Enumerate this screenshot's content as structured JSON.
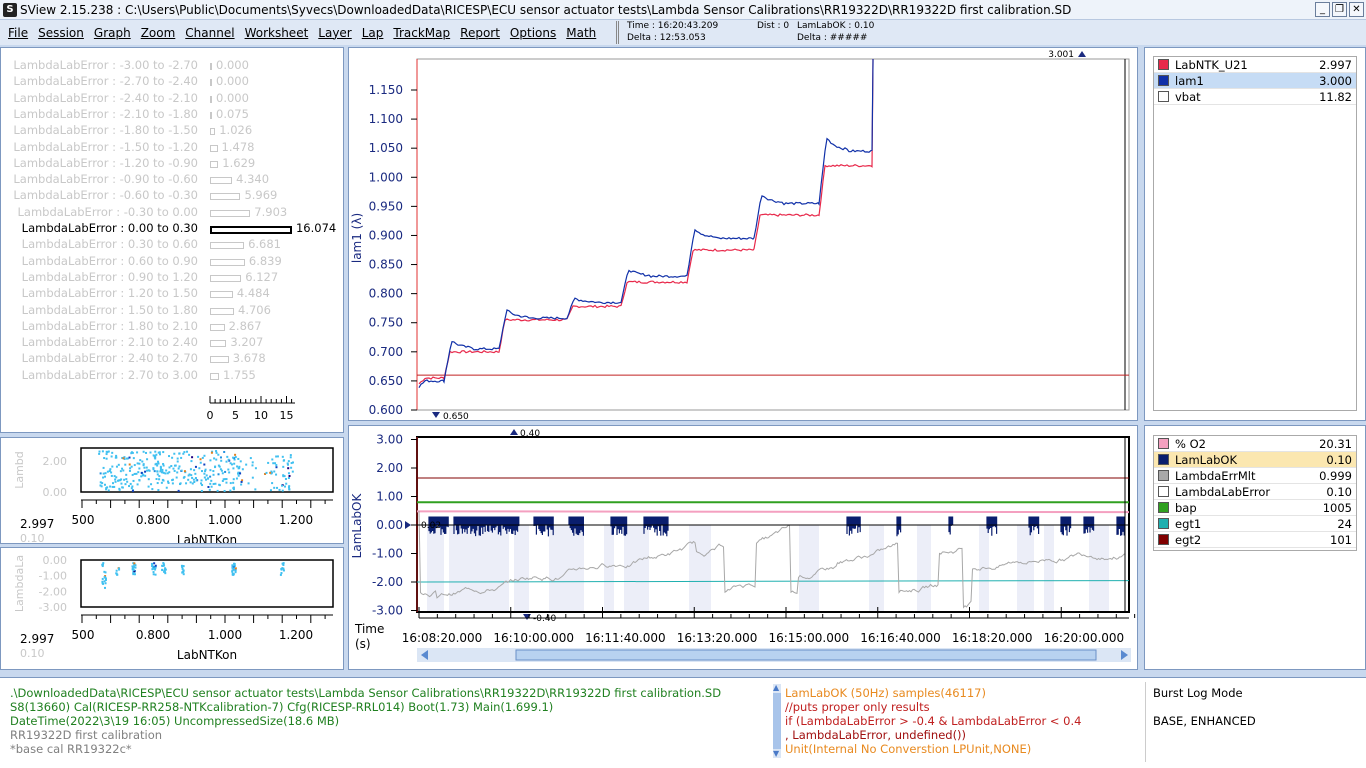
{
  "app": {
    "title": "SView 2.15.238  :  C:\\Users\\Public\\Documents\\Syvecs\\DownloadedData\\RICESP\\ECU sensor actuator tests\\Lambda Sensor Calibrations\\RR19322D\\RR19322D first calibration.SD",
    "logo": "S"
  },
  "menu": [
    "File",
    "Session",
    "Graph",
    "Zoom",
    "Channel",
    "Worksheet",
    "Layer",
    "Lap",
    "TrackMap",
    "Report",
    "Options",
    "Math"
  ],
  "status": {
    "time": "Time : 16:20:43.209",
    "dist": "Dist : 0",
    "lamlabok": "LamLabOK : 0.10",
    "delta": "Delta : 12:53.053",
    "delta2": "Delta : #####"
  },
  "histogram": {
    "rows": [
      {
        "label": "LambdaLabError : -3.00 to -2.70",
        "value": "0.000"
      },
      {
        "label": "LambdaLabError : -2.70 to -2.40",
        "value": "0.000"
      },
      {
        "label": "LambdaLabError : -2.40 to -2.10",
        "value": "0.000"
      },
      {
        "label": "LambdaLabError : -2.10 to -1.80",
        "value": "0.075"
      },
      {
        "label": "LambdaLabError : -1.80 to -1.50",
        "value": "1.026"
      },
      {
        "label": "LambdaLabError : -1.50 to -1.20",
        "value": "1.478"
      },
      {
        "label": "LambdaLabError : -1.20 to -0.90",
        "value": "1.629"
      },
      {
        "label": "LambdaLabError : -0.90 to -0.60",
        "value": "4.340"
      },
      {
        "label": "LambdaLabError : -0.60 to -0.30",
        "value": "5.969"
      },
      {
        "label": "LambdaLabError : -0.30 to 0.00",
        "value": "7.903"
      },
      {
        "label": "LambdaLabError : 0.00 to 0.30",
        "value": "16.074",
        "selected": true
      },
      {
        "label": "LambdaLabError : 0.30 to 0.60",
        "value": "6.681"
      },
      {
        "label": "LambdaLabError : 0.60 to 0.90",
        "value": "6.839"
      },
      {
        "label": "LambdaLabError : 0.90 to 1.20",
        "value": "6.127"
      },
      {
        "label": "LambdaLabError : 1.20 to 1.50",
        "value": "4.484"
      },
      {
        "label": "LambdaLabError : 1.50 to 1.80",
        "value": "4.706"
      },
      {
        "label": "LambdaLabError : 1.80 to 2.10",
        "value": "2.867"
      },
      {
        "label": "LambdaLabError : 2.10 to 2.40",
        "value": "3.207"
      },
      {
        "label": "LambdaLabError : 2.40 to 2.70",
        "value": "3.678"
      },
      {
        "label": "LambdaLabError : 2.70 to 3.00",
        "value": "1.755"
      }
    ],
    "ticks": [
      "0",
      "5",
      "10",
      "15"
    ]
  },
  "scatter1": {
    "ylabel": "Lambd",
    "yticks": [
      "2.00",
      "0.00"
    ],
    "xticks": [
      "500",
      "0.800",
      "1.000",
      "1.200"
    ],
    "xlabel": "LabNTKon",
    "v1": "2.997",
    "v2": "0.10"
  },
  "scatter2": {
    "ylabel": "LambdaLa",
    "yticks": [
      "0.00",
      "-1.00",
      "-2.00",
      "-3.00"
    ],
    "xticks": [
      "500",
      "0.800",
      "1.000",
      "1.200"
    ],
    "xlabel": "LabNTKon",
    "v1": "2.997",
    "v2": "0.10"
  },
  "top_graph": {
    "ylabel": "lam1 (λ)",
    "yticks": [
      "1.150",
      "1.100",
      "1.050",
      "1.000",
      "0.950",
      "0.900",
      "0.850",
      "0.800",
      "0.750",
      "0.700",
      "0.650",
      "0.600"
    ],
    "marker_top": "3.001",
    "marker_bottom": "0.650",
    "steps_lam1": [
      0.65,
      0.705,
      0.758,
      0.785,
      0.83,
      0.895,
      0.955,
      1.045,
      1.16
    ],
    "steps_ntk": [
      0.655,
      0.7,
      0.755,
      0.778,
      0.82,
      0.875,
      0.935,
      1.02,
      1.15
    ],
    "colors": {
      "lam1": "#1030a8",
      "ntk": "#e8284a",
      "ref": "#c02020"
    }
  },
  "bottom_graph": {
    "ylabel": "LamLabOK",
    "yticks": [
      "3.00",
      "2.00",
      "1.00",
      "0.00",
      "-1.00",
      "-2.00",
      "-3.00"
    ],
    "marker_top": "0.40",
    "marker_bottom": "-0.40",
    "marker_left": "0.02",
    "xlabel": "Time",
    "xunit": "(s)",
    "xticks": [
      "16:08:20.000",
      "16:10:00.000",
      "16:11:40.000",
      "16:13:20.000",
      "16:15:00.000",
      "16:16:40.000",
      "16:18:20.000",
      "16:20:00.000"
    ]
  },
  "legend_top": [
    {
      "name": "LabNTK_U21",
      "value": "2.997",
      "color": "#e8284a"
    },
    {
      "name": "lam1",
      "value": "3.000",
      "color": "#1030a8",
      "hl": true
    },
    {
      "name": "vbat",
      "value": "11.82",
      "color": "#ffffff"
    }
  ],
  "legend_bottom": [
    {
      "name": "% O2",
      "value": "20.31",
      "color": "#f4a0c0"
    },
    {
      "name": "LamLabOK",
      "value": "0.10",
      "color": "#0a1e6e",
      "hl": true
    },
    {
      "name": "LambdaErrMlt",
      "value": "0.999",
      "color": "#a8a8a8"
    },
    {
      "name": "LambdaLabError",
      "value": "0.10",
      "color": "#ffffff"
    },
    {
      "name": "bap",
      "value": "1005",
      "color": "#30a020"
    },
    {
      "name": "egt1",
      "value": "24",
      "color": "#20b0b0"
    },
    {
      "name": "egt2",
      "value": "101",
      "color": "#800000"
    }
  ],
  "info": {
    "lines": [
      ".\\DownloadedData\\RICESP\\ECU sensor actuator tests\\Lambda Sensor Calibrations\\RR19322D\\RR19322D first calibration.SD",
      "S8(13660) Cal(RICESP-RR258-NTKcalibration-7) Cfg(RICESP-RRL014) Boot(1.73) Main(1.699.1)",
      "DateTime(2022\\3\\19 16:05) UncompressedSize(18.6 MB)",
      "RR19322D first calibration",
      "*base cal RR19322c*"
    ],
    "math": [
      "LamLabOK (50Hz) samples(46117)",
      "//puts proper only results",
      "if (LambdaLabError > -0.4 & LambdaLabError < 0.4",
      ", LambdaLabError, undefined())",
      "Unit(Internal No Converstion LPUnit,NONE)"
    ],
    "mode": "Burst Log Mode",
    "mode2": "BASE, ENHANCED"
  }
}
